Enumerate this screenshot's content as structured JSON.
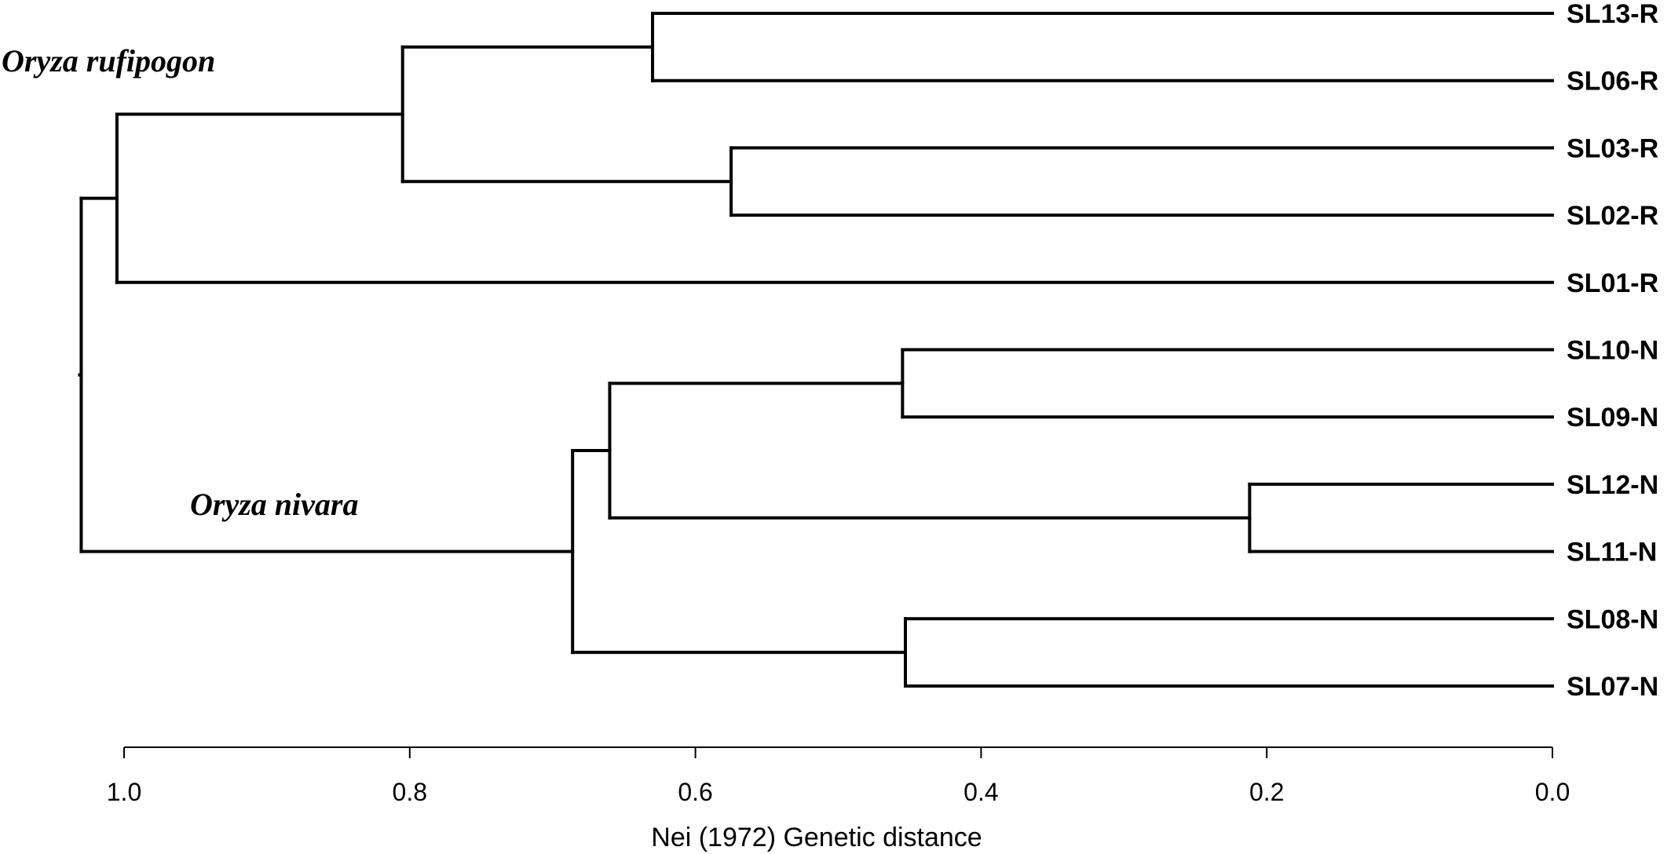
{
  "chart_data": {
    "type": "dendrogram",
    "axis": {
      "title": "Nei (1972) Genetic distance",
      "range": [
        1.0,
        0.0
      ],
      "ticks": [
        "1.0",
        "0.8",
        "0.6",
        "0.4",
        "0.2",
        "0.0"
      ],
      "tick_values": [
        1.0,
        0.8,
        0.6,
        0.4,
        0.2,
        0.0
      ]
    },
    "leaves": [
      "SL13-R",
      "SL06-R",
      "SL03-R",
      "SL02-R",
      "SL01-R",
      "SL10-N",
      "SL09-N",
      "SL12-N",
      "SL11-N",
      "SL08-N",
      "SL07-N"
    ],
    "merges": [
      {
        "id": "a",
        "children": [
          "SL13-R",
          "SL06-R"
        ],
        "height": 0.63
      },
      {
        "id": "b",
        "children": [
          "SL03-R",
          "SL02-R"
        ],
        "height": 0.575
      },
      {
        "id": "c",
        "children": [
          "a",
          "b"
        ],
        "height": 0.805
      },
      {
        "id": "d",
        "children": [
          "c",
          "SL01-R"
        ],
        "height": 1.005
      },
      {
        "id": "e",
        "children": [
          "SL10-N",
          "SL09-N"
        ],
        "height": 0.455
      },
      {
        "id": "f",
        "children": [
          "SL12-N",
          "SL11-N"
        ],
        "height": 0.212
      },
      {
        "id": "g",
        "children": [
          "e",
          "f"
        ],
        "height": 0.66
      },
      {
        "id": "h",
        "children": [
          "SL08-N",
          "SL07-N"
        ],
        "height": 0.453
      },
      {
        "id": "i",
        "children": [
          "g",
          "h"
        ],
        "height": 0.686
      },
      {
        "id": "root",
        "children": [
          "d",
          "i"
        ],
        "height": 1.03
      }
    ],
    "clade_labels": [
      {
        "text": "Oryza rufipogon"
      },
      {
        "text": "Oryza nivara"
      }
    ]
  }
}
